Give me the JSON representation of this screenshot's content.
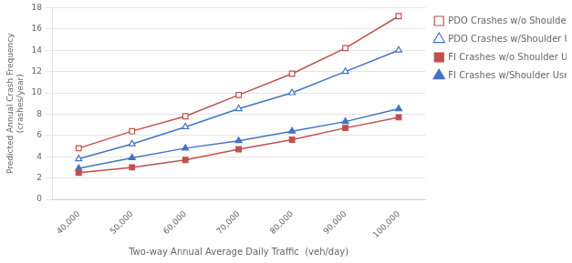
{
  "chart_data": {
    "type": "line",
    "xlabel": "Two-way Annual Average Daily Traffic  (veh/day)",
    "ylabel": "Predicted Annual Crash Frequency\n(crashes/year)",
    "x": [
      40000,
      50000,
      60000,
      70000,
      80000,
      90000,
      100000
    ],
    "series": [
      {
        "name": "PDO Crashes w/o Shoulder Use",
        "color": "#C0504D",
        "marker": "square-open",
        "line_style": "solid",
        "values": [
          4.8,
          6.4,
          7.8,
          9.8,
          11.8,
          14.2,
          17.2
        ]
      },
      {
        "name": "PDO Crashes w/Shoulder Use",
        "color": "#4472C4",
        "marker": "triangle-open",
        "line_style": "solid",
        "values": [
          3.8,
          5.2,
          6.8,
          8.5,
          10.0,
          12.0,
          14.0
        ]
      },
      {
        "name": "FI Crashes w/o Shoulder Use",
        "color": "#C0504D",
        "marker": "square",
        "line_style": "solid",
        "values": [
          2.5,
          3.0,
          3.7,
          4.7,
          5.6,
          6.7,
          7.7
        ]
      },
      {
        "name": "FI Crashes w/Shoulder Use",
        "color": "#4472C4",
        "marker": "triangle",
        "line_style": "solid",
        "values": [
          2.9,
          3.9,
          4.8,
          5.5,
          6.4,
          7.3,
          8.5
        ]
      }
    ],
    "xlim": [
      35000,
      105000
    ],
    "xticks": [
      {
        "value": 40000,
        "label": "40,000"
      },
      {
        "value": 50000,
        "label": "50,000"
      },
      {
        "value": 60000,
        "label": "60,000"
      },
      {
        "value": 70000,
        "label": "70,000"
      },
      {
        "value": 80000,
        "label": "80,000"
      },
      {
        "value": 90000,
        "label": "90,000"
      },
      {
        "value": 100000,
        "label": "100,000"
      }
    ],
    "ylim": [
      0,
      18
    ],
    "yticks": [
      0,
      2,
      4,
      6,
      8,
      10,
      12,
      14,
      16,
      18
    ],
    "grid": "y",
    "legend": "right"
  }
}
